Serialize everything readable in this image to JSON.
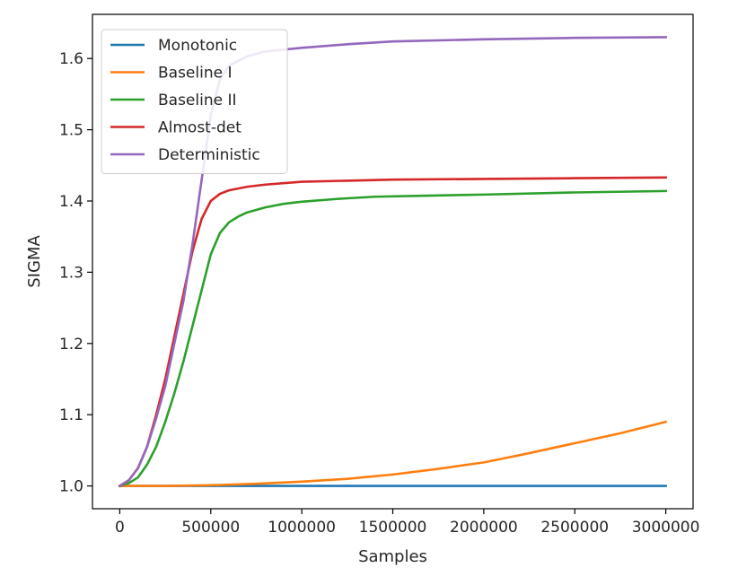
{
  "chart_data": {
    "type": "line",
    "xlabel": "Samples",
    "ylabel": "SIGMA",
    "xlim": [
      -150000,
      3150000
    ],
    "ylim": [
      0.968,
      1.662
    ],
    "xticks": [
      0,
      500000,
      1000000,
      1500000,
      2000000,
      2500000,
      3000000
    ],
    "xtick_labels": [
      "0",
      "500000",
      "1000000",
      "1500000",
      "2000000",
      "2500000",
      "3000000"
    ],
    "yticks": [
      1.0,
      1.1,
      1.2,
      1.3,
      1.4,
      1.5,
      1.6
    ],
    "ytick_labels": [
      "1.0",
      "1.1",
      "1.2",
      "1.3",
      "1.4",
      "1.5",
      "1.6"
    ],
    "grid": false,
    "legend": "top-left",
    "series": [
      {
        "name": "Monotonic",
        "color": "#1f77b4",
        "x": [
          0,
          500000,
          1000000,
          1500000,
          2000000,
          2500000,
          3000000
        ],
        "y": [
          1.0,
          1.0,
          1.0,
          1.0,
          1.0,
          1.0,
          1.0
        ]
      },
      {
        "name": "Baseline I",
        "color": "#ff7f0e",
        "x": [
          0,
          250000,
          500000,
          750000,
          1000000,
          1250000,
          1500000,
          1750000,
          2000000,
          2250000,
          2500000,
          2750000,
          3000000
        ],
        "y": [
          1.0,
          1.0,
          1.001,
          1.003,
          1.006,
          1.01,
          1.016,
          1.024,
          1.033,
          1.046,
          1.06,
          1.074,
          1.09
        ]
      },
      {
        "name": "Baseline II",
        "color": "#2ca02c",
        "x": [
          0,
          50000,
          100000,
          150000,
          200000,
          250000,
          300000,
          350000,
          400000,
          450000,
          500000,
          550000,
          600000,
          650000,
          700000,
          800000,
          900000,
          1000000,
          1200000,
          1400000,
          1600000,
          2000000,
          2500000,
          3000000
        ],
        "y": [
          1.0,
          1.004,
          1.012,
          1.03,
          1.055,
          1.09,
          1.13,
          1.175,
          1.225,
          1.275,
          1.325,
          1.355,
          1.37,
          1.378,
          1.384,
          1.391,
          1.396,
          1.399,
          1.403,
          1.406,
          1.407,
          1.409,
          1.412,
          1.414
        ]
      },
      {
        "name": "Almost-det",
        "color": "#d62728",
        "x": [
          0,
          50000,
          100000,
          150000,
          200000,
          250000,
          300000,
          350000,
          400000,
          450000,
          500000,
          550000,
          600000,
          700000,
          800000,
          1000000,
          1500000,
          2000000,
          2500000,
          3000000
        ],
        "y": [
          1.0,
          1.008,
          1.025,
          1.055,
          1.1,
          1.15,
          1.21,
          1.27,
          1.33,
          1.375,
          1.4,
          1.41,
          1.415,
          1.42,
          1.423,
          1.427,
          1.43,
          1.431,
          1.432,
          1.433
        ]
      },
      {
        "name": "Deterministic",
        "color": "#9467bd",
        "x": [
          0,
          50000,
          100000,
          150000,
          200000,
          250000,
          300000,
          350000,
          400000,
          450000,
          500000,
          550000,
          600000,
          700000,
          800000,
          1000000,
          1250000,
          1500000,
          2000000,
          2500000,
          3000000
        ],
        "y": [
          1.0,
          1.008,
          1.025,
          1.055,
          1.095,
          1.14,
          1.2,
          1.26,
          1.34,
          1.43,
          1.52,
          1.57,
          1.59,
          1.603,
          1.61,
          1.615,
          1.62,
          1.624,
          1.627,
          1.629,
          1.63
        ]
      }
    ]
  }
}
